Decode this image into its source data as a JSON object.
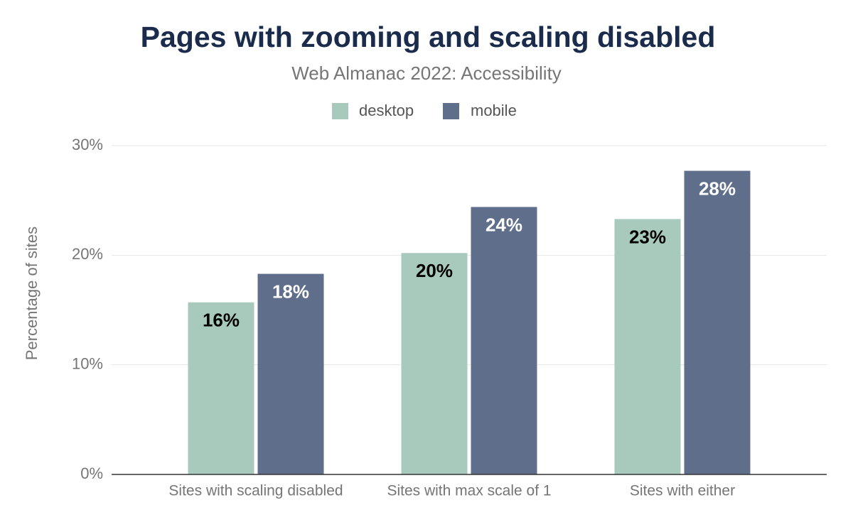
{
  "chart_data": {
    "type": "bar",
    "title": "Pages with zooming and scaling disabled",
    "subtitle": "Web Almanac 2022: Accessibility",
    "y_label": "Percentage of sites",
    "categories": [
      "Sites with scaling disabled",
      "Sites with max scale of 1",
      "Sites with either"
    ],
    "series": [
      {
        "name": "desktop",
        "color": "#a8cabc",
        "values": [
          15.7,
          20.2,
          23.3
        ],
        "value_labels": [
          "16%",
          "20%",
          "23%"
        ],
        "label_color": "#000000"
      },
      {
        "name": "mobile",
        "color": "#5f6f8b",
        "values": [
          18.3,
          24.4,
          27.7
        ],
        "value_labels": [
          "18%",
          "24%",
          "28%"
        ],
        "label_color": "#ffffff"
      }
    ],
    "ylim": [
      0,
      30
    ],
    "yticks": [
      {
        "value": 0,
        "label": "0%"
      },
      {
        "value": 10,
        "label": "10%"
      },
      {
        "value": 20,
        "label": "20%"
      },
      {
        "value": 30,
        "label": "30%"
      }
    ],
    "grid": true,
    "legend": "top"
  }
}
